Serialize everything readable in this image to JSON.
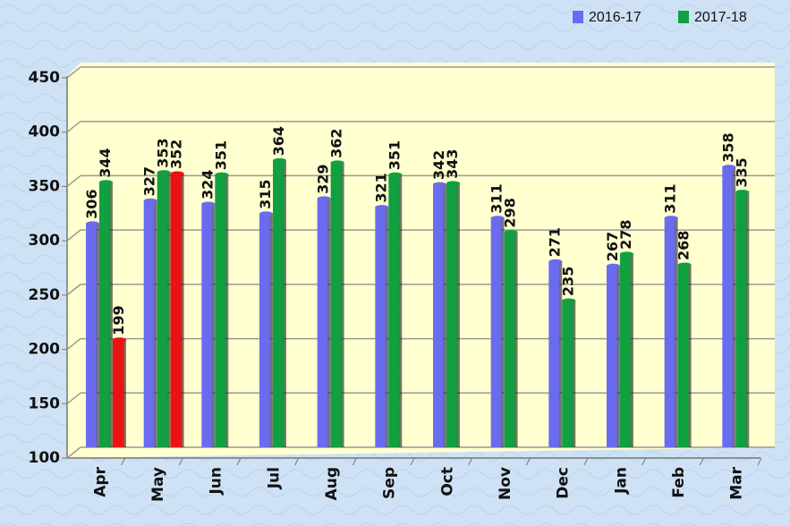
{
  "chart_data": {
    "type": "bar",
    "categories": [
      "Apr",
      "May",
      "Jun",
      "Jul",
      "Aug",
      "Sep",
      "Oct",
      "Nov",
      "Dec",
      "Jan",
      "Feb",
      "Mar"
    ],
    "series": [
      {
        "name": "2016-17",
        "color": "#6b6bf0",
        "values": [
          306,
          327,
          324,
          315,
          329,
          321,
          342,
          311,
          271,
          267,
          311,
          358
        ]
      },
      {
        "name": "2017-18",
        "color": "#10a040",
        "values": [
          344,
          353,
          351,
          364,
          362,
          351,
          343,
          298,
          235,
          278,
          268,
          335
        ]
      },
      {
        "color": "#ee1111",
        "values": [
          199,
          352,
          null,
          null,
          null,
          null,
          null,
          null,
          null,
          null,
          null,
          null
        ]
      }
    ],
    "ylim": [
      100,
      450
    ],
    "yticks": [
      100,
      150,
      200,
      250,
      300,
      350,
      400,
      450
    ],
    "grid": true
  }
}
